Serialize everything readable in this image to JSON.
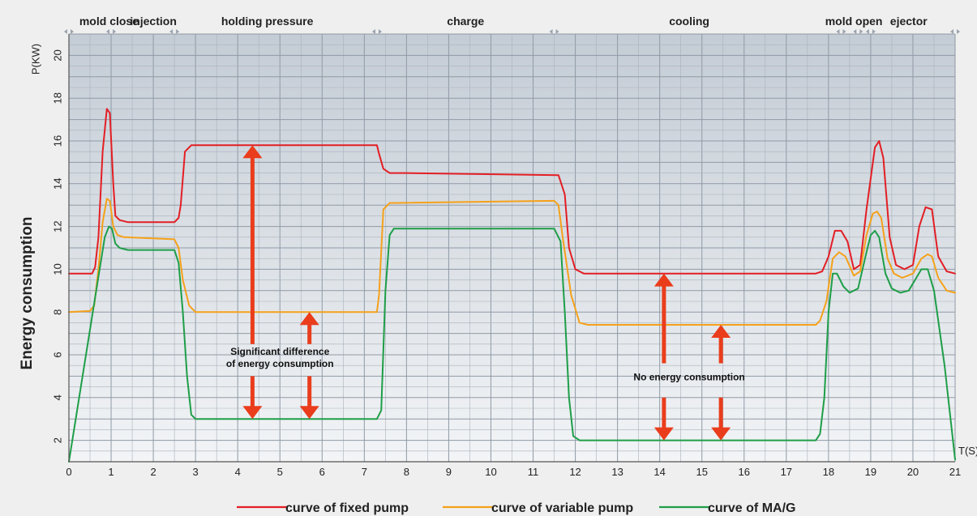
{
  "chart_data": {
    "type": "line",
    "title": "",
    "ylabel": "Energy consumption",
    "y_unit_label": "P(KW)",
    "x_unit_label": "T(S)",
    "xlim": [
      0,
      21
    ],
    "ylim": [
      1,
      21
    ],
    "x_ticks": [
      0,
      1,
      2,
      3,
      4,
      5,
      6,
      7,
      8,
      9,
      10,
      11,
      12,
      13,
      14,
      15,
      16,
      17,
      18,
      19,
      20,
      21
    ],
    "y_ticks": [
      2,
      4,
      6,
      8,
      10,
      12,
      14,
      16,
      18,
      20
    ],
    "grid": true,
    "legend_position": "bottom-center",
    "phases": [
      {
        "label": "mold close",
        "center": 0.95
      },
      {
        "label": "injection",
        "center": 2.0
      },
      {
        "label": "holding pressure",
        "center": 4.7
      },
      {
        "label": "charge",
        "center": 9.4
      },
      {
        "label": "cooling",
        "center": 14.7
      },
      {
        "label": "mold open",
        "center": 18.6
      },
      {
        "label": "ejector",
        "center": 19.9
      }
    ],
    "phase_boundaries": [
      0,
      1.0,
      2.5,
      7.3,
      11.5,
      18.3,
      18.7,
      19.0,
      21.0
    ],
    "series": [
      {
        "name": "curve of fixed pump",
        "color": "#e31e24",
        "x": [
          0,
          0.55,
          0.62,
          0.7,
          0.8,
          0.9,
          0.97,
          1.05,
          1.1,
          1.2,
          1.4,
          2.5,
          2.6,
          2.65,
          2.75,
          2.9,
          3.2,
          7.3,
          7.35,
          7.45,
          7.6,
          8.0,
          11.6,
          11.75,
          11.85,
          12.0,
          12.2,
          12.5,
          17.7,
          17.85,
          18.0,
          18.15,
          18.3,
          18.45,
          18.6,
          18.75,
          18.9,
          19.1,
          19.2,
          19.3,
          19.45,
          19.6,
          19.8,
          20.0,
          20.15,
          20.3,
          20.45,
          20.6,
          20.8,
          21.0
        ],
        "y": [
          9.8,
          9.8,
          10.1,
          11.5,
          15.5,
          17.5,
          17.3,
          14.0,
          12.5,
          12.3,
          12.2,
          12.2,
          12.4,
          13.0,
          15.5,
          15.8,
          15.8,
          15.8,
          15.4,
          14.7,
          14.5,
          14.5,
          14.4,
          13.5,
          11.0,
          10.0,
          9.8,
          9.8,
          9.8,
          9.9,
          10.6,
          11.8,
          11.8,
          11.3,
          10.0,
          10.2,
          12.8,
          15.7,
          16.0,
          15.2,
          11.5,
          10.2,
          10.0,
          10.2,
          12.0,
          12.9,
          12.8,
          10.6,
          9.9,
          9.8
        ]
      },
      {
        "name": "curve of variable pump",
        "color": "#f5a11a",
        "x": [
          0,
          0.5,
          0.6,
          0.7,
          0.8,
          0.9,
          0.97,
          1.05,
          1.15,
          1.3,
          2.5,
          2.6,
          2.7,
          2.85,
          3.0,
          7.3,
          7.35,
          7.45,
          7.6,
          11.5,
          11.6,
          11.7,
          11.9,
          12.1,
          12.3,
          17.7,
          17.8,
          17.95,
          18.1,
          18.25,
          18.4,
          18.6,
          18.75,
          18.9,
          19.05,
          19.15,
          19.25,
          19.4,
          19.55,
          19.75,
          20.0,
          20.2,
          20.35,
          20.45,
          20.6,
          20.8,
          21.0
        ],
        "y": [
          8.0,
          8.05,
          8.3,
          10.0,
          12.2,
          13.3,
          13.2,
          12.0,
          11.6,
          11.5,
          11.4,
          11.0,
          9.5,
          8.3,
          8.0,
          8.0,
          8.8,
          12.8,
          13.1,
          13.2,
          13.0,
          11.5,
          8.8,
          7.5,
          7.4,
          7.4,
          7.6,
          8.5,
          10.5,
          10.8,
          10.6,
          9.7,
          9.9,
          11.6,
          12.6,
          12.7,
          12.4,
          10.5,
          9.8,
          9.6,
          9.8,
          10.5,
          10.7,
          10.6,
          9.6,
          9.0,
          8.9
        ]
      },
      {
        "name": "curve of MA/G",
        "color": "#1e9e48",
        "x": [
          0,
          0.85,
          0.95,
          1.02,
          1.1,
          1.2,
          1.4,
          2.5,
          2.6,
          2.7,
          2.8,
          2.9,
          3.0,
          7.3,
          7.4,
          7.5,
          7.6,
          7.7,
          11.5,
          11.65,
          11.75,
          11.85,
          11.95,
          12.1,
          17.7,
          17.8,
          17.9,
          18.0,
          18.1,
          18.2,
          18.35,
          18.5,
          18.7,
          18.9,
          19.0,
          19.1,
          19.2,
          19.35,
          19.5,
          19.7,
          19.9,
          20.05,
          20.2,
          20.35,
          20.5,
          20.75,
          21.0
        ],
        "y": [
          1.0,
          11.5,
          12.0,
          11.9,
          11.2,
          11.0,
          10.9,
          10.9,
          10.3,
          8.0,
          5.0,
          3.2,
          3.0,
          3.0,
          3.4,
          9.0,
          11.6,
          11.9,
          11.9,
          11.3,
          8.0,
          4.0,
          2.2,
          2.0,
          2.0,
          2.3,
          4.0,
          8.0,
          9.8,
          9.8,
          9.2,
          8.9,
          9.1,
          10.8,
          11.6,
          11.8,
          11.5,
          9.8,
          9.1,
          8.9,
          9.0,
          9.5,
          10.0,
          10.0,
          9.0,
          5.5,
          1.1
        ]
      }
    ],
    "annotations": [
      {
        "text_lines": [
          "Significant difference",
          "of energy consumption"
        ],
        "x": 5.0,
        "y": 6.0
      },
      {
        "text_lines": [
          "No energy consumption"
        ],
        "x": 14.7,
        "y": 4.8
      }
    ],
    "arrows": [
      {
        "x": 4.35,
        "y_from": 3.0,
        "y_to": 15.8,
        "text_gap": [
          5.0,
          6.5
        ]
      },
      {
        "x": 5.7,
        "y_from": 3.0,
        "y_to": 8.0,
        "text_gap": [
          5.0,
          6.5
        ]
      },
      {
        "x": 14.1,
        "y_from": 2.0,
        "y_to": 9.8,
        "text_gap": [
          4.0,
          5.6
        ]
      },
      {
        "x": 15.45,
        "y_from": 2.0,
        "y_to": 7.4,
        "text_gap": [
          4.0,
          5.6
        ]
      }
    ]
  }
}
